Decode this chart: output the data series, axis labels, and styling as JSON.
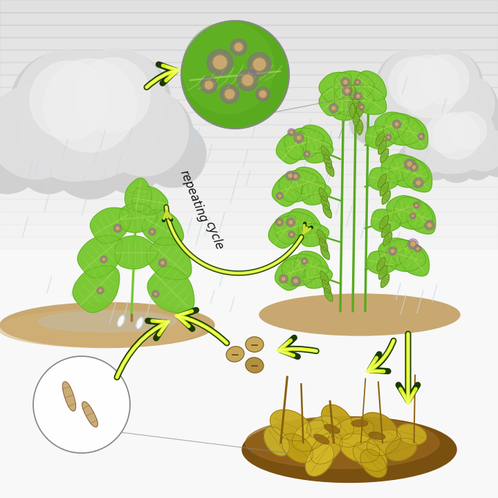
{
  "figsize": [
    7.2,
    7.2
  ],
  "dpi": 100,
  "bg_color": "#f8f8f8",
  "cloud_color": "#d8d8d8",
  "cloud_dark": "#b0b0b0",
  "rain_color": "#d0dde8",
  "soil_tan": "#c8a870",
  "soil_dark": "#a07840",
  "leaf_bright": "#78c830",
  "leaf_mid": "#5aaa20",
  "leaf_dark": "#3a8010",
  "leaf_vein": "#c8e880",
  "pod_green": "#7ab830",
  "dead_yellow": "#c8a820",
  "dead_brown": "#8b6010",
  "seed_tan": "#c8a858",
  "seed_dark": "#9a7838",
  "spot_tan": "#c8a870",
  "spot_purple": "#9060a0",
  "spore_tan": "#c8a878",
  "arrow_bright": "#c8e030",
  "arrow_yellow": "#e8f060",
  "arrow_dark": "#1a3a00",
  "text_color": "#111111",
  "repeating_text": "repeating\ncycle"
}
